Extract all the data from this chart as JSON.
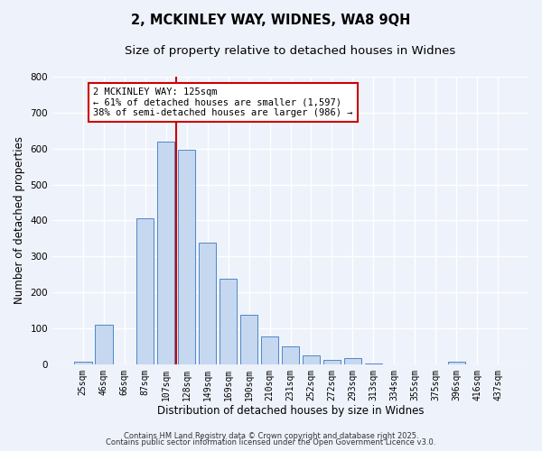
{
  "title": "2, MCKINLEY WAY, WIDNES, WA8 9QH",
  "subtitle": "Size of property relative to detached houses in Widnes",
  "xlabel": "Distribution of detached houses by size in Widnes",
  "ylabel": "Number of detached properties",
  "bin_labels": [
    "25sqm",
    "46sqm",
    "66sqm",
    "87sqm",
    "107sqm",
    "128sqm",
    "149sqm",
    "169sqm",
    "190sqm",
    "210sqm",
    "231sqm",
    "252sqm",
    "272sqm",
    "293sqm",
    "313sqm",
    "334sqm",
    "355sqm",
    "375sqm",
    "396sqm",
    "416sqm",
    "437sqm"
  ],
  "bar_heights": [
    8,
    110,
    0,
    405,
    620,
    598,
    338,
    237,
    137,
    78,
    50,
    25,
    12,
    17,
    2,
    0,
    0,
    0,
    8,
    0,
    0
  ],
  "bar_color": "#c5d8f0",
  "bar_edge_color": "#4f87c5",
  "vline_color": "#cc0000",
  "annotation_title": "2 MCKINLEY WAY: 125sqm",
  "annotation_line1": "← 61% of detached houses are smaller (1,597)",
  "annotation_line2": "38% of semi-detached houses are larger (986) →",
  "annotation_box_color": "white",
  "annotation_box_edge": "#cc0000",
  "ylim": [
    0,
    800
  ],
  "yticks": [
    0,
    100,
    200,
    300,
    400,
    500,
    600,
    700,
    800
  ],
  "footer1": "Contains HM Land Registry data © Crown copyright and database right 2025.",
  "footer2": "Contains public sector information licensed under the Open Government Licence v3.0.",
  "bg_color": "#eef2fb",
  "grid_color": "#ffffff",
  "title_fontsize": 10.5,
  "subtitle_fontsize": 9.5,
  "axis_label_fontsize": 8.5,
  "tick_fontsize": 7.0,
  "footer_fontsize": 6.0,
  "annot_fontsize": 7.5
}
